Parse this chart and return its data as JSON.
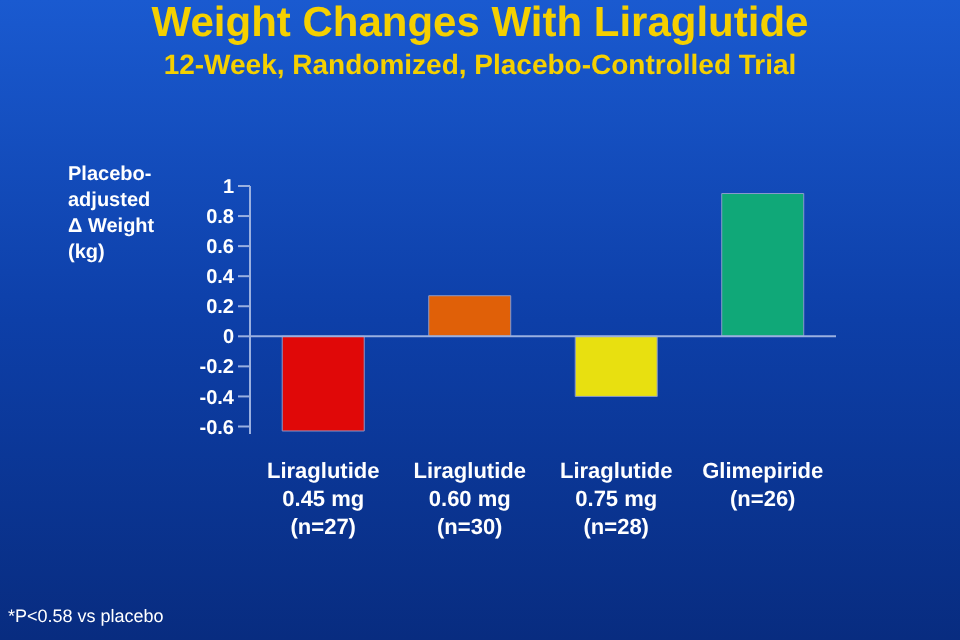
{
  "chart_data": {
    "type": "bar",
    "title": "Weight Changes With Liraglutide",
    "subtitle": "12-Week, Randomized, Placebo-Controlled Trial",
    "ylabel": "Placebo-\nadjusted\nΔ Weight\n(kg)",
    "categories": [
      "Liraglutide\n0.45 mg\n(n=27)",
      "Liraglutide\n0.60 mg\n(n=30)",
      "Liraglutide\n0.75 mg\n(n=28)",
      "Glimepiride\n(n=26)"
    ],
    "values": [
      -0.63,
      0.27,
      -0.4,
      0.95
    ],
    "colors": [
      "#e00808",
      "#e06008",
      "#e8e010",
      "#10a878"
    ],
    "ylim": [
      -0.65,
      1
    ],
    "yticks": [
      -0.6,
      -0.4,
      -0.2,
      0,
      0.2,
      0.4,
      0.6,
      0.8,
      1
    ],
    "ref_lines": [
      {
        "axis": "y",
        "value": 0,
        "color": "#9ab0e0"
      }
    ],
    "annotations": [
      "*P<0.58 vs placebo"
    ]
  }
}
